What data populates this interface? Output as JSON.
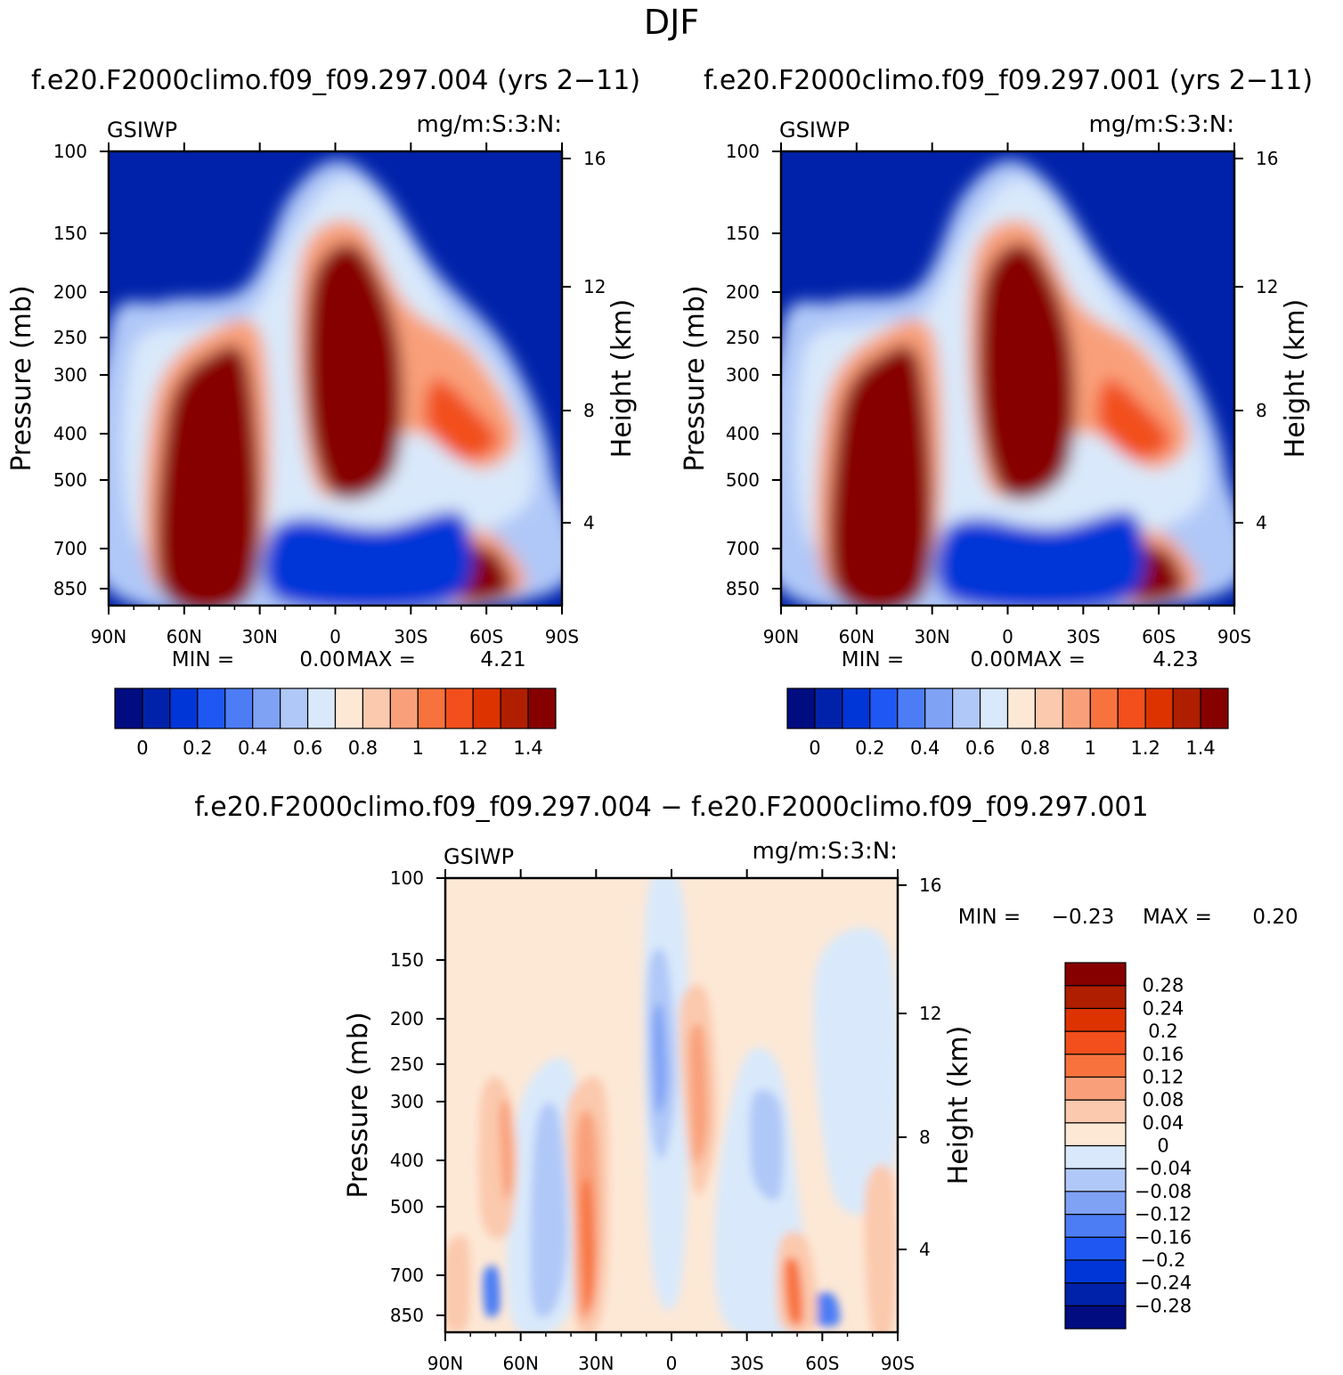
{
  "title": "DJF",
  "colors": {
    "abs_levels": [
      "#000c80",
      "#0022aa",
      "#0036d8",
      "#1f57f2",
      "#4c7df5",
      "#7fa2f5",
      "#b0c8f8",
      "#d9e9fb",
      "#fde8d6",
      "#fbc9ad",
      "#f9a07a",
      "#f8723e",
      "#f24f1c",
      "#dc3300",
      "#b01e00",
      "#870000"
    ],
    "diff_levels": [
      "#000c80",
      "#0022aa",
      "#0036d8",
      "#1f57f2",
      "#4c7df5",
      "#7fa2f5",
      "#b0c8f8",
      "#d9e9fb",
      "#fde8d6",
      "#fbc9ad",
      "#f9a07a",
      "#f8723e",
      "#f24f1c",
      "#dc3300",
      "#b01e00",
      "#870000"
    ]
  },
  "chart_data": [
    {
      "type": "heatmap",
      "title": "f.e20.F2000climo.f09_f09.297.004 (yrs 2−11)",
      "left_label": "GSIWP",
      "units": "mg/m:S:3:N:",
      "ylabel": "Pressure (mb)",
      "y2label": "Height (km)",
      "x_ticks": [
        "90N",
        "60N",
        "30N",
        "0",
        "30S",
        "60S",
        "90S"
      ],
      "y_ticks": [
        "100",
        "150",
        "200",
        "250",
        "300",
        "400",
        "500",
        "700",
        "850"
      ],
      "y2_ticks": [
        "16",
        "12",
        "8",
        "4"
      ],
      "min_label": "MIN =",
      "min_value": "0.00",
      "max_label": "MAX =",
      "max_value": "4.21",
      "colorbar_labels": [
        "0",
        "0.2",
        "0.4",
        "0.6",
        "0.8",
        "1",
        "1.2",
        "1.4"
      ]
    },
    {
      "type": "heatmap",
      "title": "f.e20.F2000climo.f09_f09.297.001 (yrs 2−11)",
      "left_label": "GSIWP",
      "units": "mg/m:S:3:N:",
      "ylabel": "Pressure (mb)",
      "y2label": "Height (km)",
      "x_ticks": [
        "90N",
        "60N",
        "30N",
        "0",
        "30S",
        "60S",
        "90S"
      ],
      "y_ticks": [
        "100",
        "150",
        "200",
        "250",
        "300",
        "400",
        "500",
        "700",
        "850"
      ],
      "y2_ticks": [
        "16",
        "12",
        "8",
        "4"
      ],
      "min_label": "MIN =",
      "min_value": "0.00",
      "max_label": "MAX =",
      "max_value": "4.23",
      "colorbar_labels": [
        "0",
        "0.2",
        "0.4",
        "0.6",
        "0.8",
        "1",
        "1.2",
        "1.4"
      ]
    },
    {
      "type": "heatmap",
      "title": "f.e20.F2000climo.f09_f09.297.004 − f.e20.F2000climo.f09_f09.297.001",
      "left_label": "GSIWP",
      "units": "mg/m:S:3:N:",
      "ylabel": "Pressure (mb)",
      "y2label": "Height (km)",
      "x_ticks": [
        "90N",
        "60N",
        "30N",
        "0",
        "30S",
        "60S",
        "90S"
      ],
      "y_ticks": [
        "100",
        "150",
        "200",
        "250",
        "300",
        "400",
        "500",
        "700",
        "850"
      ],
      "y2_ticks": [
        "16",
        "12",
        "8",
        "4"
      ],
      "min_label": "MIN =",
      "min_value": "−0.23",
      "max_label": "MAX =",
      "max_value": "0.20",
      "colorbar_labels": [
        "0.28",
        "0.24",
        "0.2",
        "0.16",
        "0.12",
        "0.08",
        "0.04",
        "0",
        "−0.04",
        "−0.08",
        "−0.12",
        "−0.16",
        "−0.2",
        "−0.24",
        "−0.28"
      ]
    }
  ]
}
